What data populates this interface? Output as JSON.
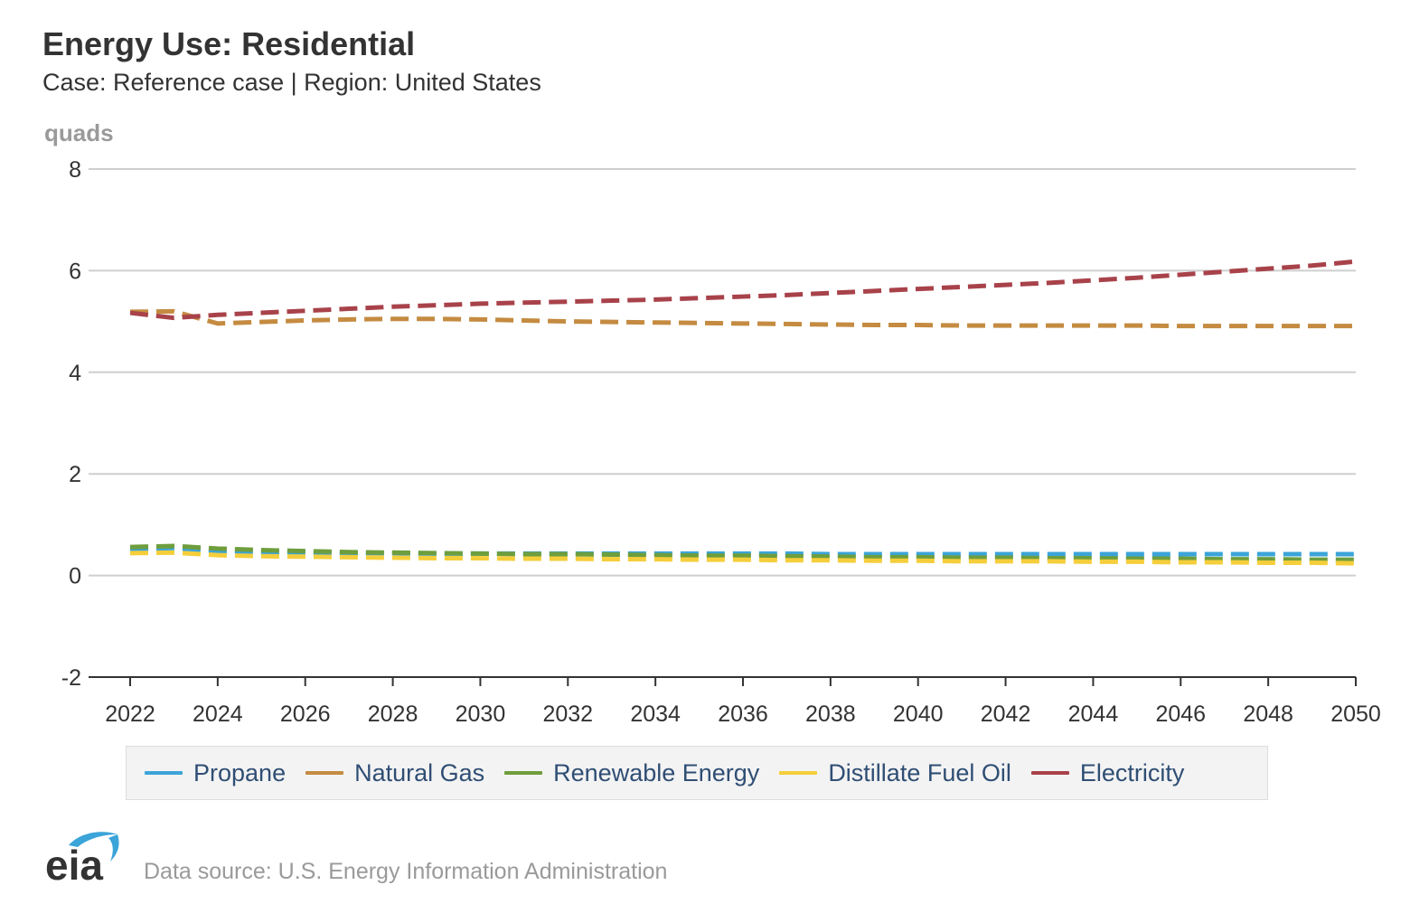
{
  "header": {
    "title": "Energy Use: Residential",
    "subtitle": "Case: Reference case | Region: United States"
  },
  "footer": {
    "logo_text": "eia",
    "source": "Data source: U.S. Energy Information Administration"
  },
  "chart_data": {
    "type": "line",
    "title": "Energy Use: Residential",
    "subtitle": "Case: Reference case | Region: United States",
    "ylabel": "quads",
    "xlabel": "",
    "ylim": [
      -2,
      8
    ],
    "xlim": [
      2022,
      2050
    ],
    "yticks": [
      -2,
      0,
      2,
      4,
      6,
      8
    ],
    "xticks": [
      2022,
      2024,
      2026,
      2028,
      2030,
      2032,
      2034,
      2036,
      2038,
      2040,
      2042,
      2044,
      2046,
      2048,
      2050
    ],
    "grid": true,
    "legend_position": "bottom",
    "line_style": "dashed",
    "x": [
      2022,
      2023,
      2024,
      2025,
      2026,
      2027,
      2028,
      2029,
      2030,
      2031,
      2032,
      2033,
      2034,
      2035,
      2036,
      2037,
      2038,
      2039,
      2040,
      2041,
      2042,
      2043,
      2044,
      2045,
      2046,
      2047,
      2048,
      2049,
      2050
    ],
    "series": [
      {
        "name": "Propane",
        "color": "#3ba4d9",
        "values": [
          0.51,
          0.54,
          0.48,
          0.46,
          0.45,
          0.44,
          0.44,
          0.43,
          0.43,
          0.43,
          0.43,
          0.43,
          0.43,
          0.43,
          0.43,
          0.43,
          0.42,
          0.42,
          0.42,
          0.42,
          0.42,
          0.42,
          0.42,
          0.42,
          0.42,
          0.42,
          0.42,
          0.42,
          0.42
        ]
      },
      {
        "name": "Natural Gas",
        "color": "#c48b41",
        "values": [
          5.19,
          5.2,
          4.96,
          4.99,
          5.02,
          5.04,
          5.05,
          5.05,
          5.04,
          5.02,
          5.0,
          4.99,
          4.98,
          4.97,
          4.96,
          4.95,
          4.94,
          4.93,
          4.93,
          4.92,
          4.92,
          4.92,
          4.92,
          4.92,
          4.91,
          4.91,
          4.91,
          4.91,
          4.91
        ]
      },
      {
        "name": "Renewable Energy",
        "color": "#6e9e3d",
        "values": [
          0.56,
          0.58,
          0.53,
          0.5,
          0.48,
          0.46,
          0.45,
          0.44,
          0.43,
          0.42,
          0.42,
          0.41,
          0.4,
          0.39,
          0.39,
          0.38,
          0.37,
          0.36,
          0.36,
          0.35,
          0.35,
          0.34,
          0.34,
          0.33,
          0.33,
          0.32,
          0.32,
          0.31,
          0.31
        ]
      },
      {
        "name": "Distillate Fuel Oil",
        "color": "#f5ce3b",
        "values": [
          0.44,
          0.45,
          0.4,
          0.38,
          0.37,
          0.36,
          0.35,
          0.34,
          0.34,
          0.33,
          0.33,
          0.32,
          0.32,
          0.31,
          0.31,
          0.3,
          0.3,
          0.29,
          0.29,
          0.28,
          0.28,
          0.28,
          0.27,
          0.27,
          0.26,
          0.26,
          0.25,
          0.25,
          0.24
        ]
      },
      {
        "name": "Electricity",
        "color": "#a8424a",
        "values": [
          5.17,
          5.07,
          5.13,
          5.17,
          5.21,
          5.25,
          5.29,
          5.32,
          5.35,
          5.37,
          5.39,
          5.41,
          5.43,
          5.46,
          5.49,
          5.52,
          5.56,
          5.6,
          5.64,
          5.68,
          5.72,
          5.76,
          5.81,
          5.86,
          5.92,
          5.98,
          6.04,
          6.1,
          6.18
        ]
      }
    ]
  }
}
